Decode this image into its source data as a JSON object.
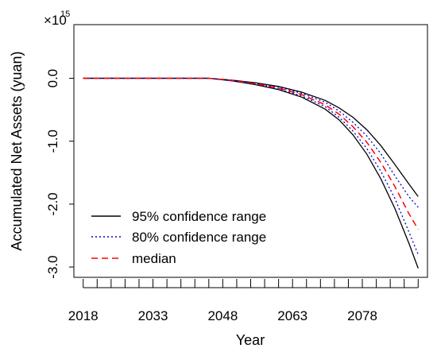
{
  "chart_data": {
    "type": "line",
    "title": "",
    "xlabel": "Year",
    "ylabel": "Accumulated Net Assets (yuan)",
    "y_multiplier_label": "×10",
    "y_multiplier_exponent": "15",
    "x_ticks": [
      2018,
      2021,
      2024,
      2027,
      2030,
      2033,
      2036,
      2039,
      2042,
      2045,
      2048,
      2051,
      2054,
      2057,
      2060,
      2063,
      2066,
      2069,
      2072,
      2075,
      2078,
      2081,
      2084,
      2087,
      2090
    ],
    "x_tick_labels": [
      {
        "value": 2018,
        "label": "2018"
      },
      {
        "value": 2033,
        "label": "2033"
      },
      {
        "value": 2048,
        "label": "2048"
      },
      {
        "value": 2063,
        "label": "2063"
      },
      {
        "value": 2078,
        "label": "2078"
      }
    ],
    "y_ticks": [
      {
        "value": 0.0,
        "label": "0.0"
      },
      {
        "value": -1.0,
        "label": "-1.0"
      },
      {
        "value": -2.0,
        "label": "-2.0"
      },
      {
        "value": -3.0,
        "label": "-3.0"
      }
    ],
    "xlim": [
      2016,
      2092
    ],
    "ylim": [
      -3.05,
      0.55
    ],
    "x": [
      2018,
      2045,
      2050,
      2055,
      2060,
      2065,
      2070,
      2073,
      2076,
      2079,
      2082,
      2085,
      2088,
      2090
    ],
    "series": [
      {
        "name": "95% confidence range",
        "role": "upper",
        "color": "#000000",
        "values": [
          0,
          0,
          -0.03,
          -0.07,
          -0.13,
          -0.22,
          -0.35,
          -0.47,
          -0.62,
          -0.82,
          -1.07,
          -1.37,
          -1.68,
          -1.88
        ]
      },
      {
        "name": "",
        "role": "lower",
        "color": "#000000",
        "values": [
          0,
          0,
          -0.04,
          -0.1,
          -0.18,
          -0.3,
          -0.49,
          -0.66,
          -0.9,
          -1.21,
          -1.6,
          -2.07,
          -2.62,
          -3.02
        ]
      },
      {
        "name": "80% confidence range",
        "role": "upper",
        "color": "#0000cc",
        "values": [
          0,
          0,
          -0.03,
          -0.08,
          -0.14,
          -0.24,
          -0.38,
          -0.52,
          -0.7,
          -0.92,
          -1.2,
          -1.55,
          -1.88,
          -2.05
        ]
      },
      {
        "name": "",
        "role": "lower",
        "color": "#0000cc",
        "values": [
          0,
          0,
          -0.04,
          -0.09,
          -0.17,
          -0.28,
          -0.45,
          -0.62,
          -0.84,
          -1.12,
          -1.48,
          -1.91,
          -2.44,
          -2.8
        ]
      },
      {
        "name": "median",
        "role": "median",
        "color": "#ff0000",
        "values": [
          0,
          0,
          -0.035,
          -0.085,
          -0.155,
          -0.26,
          -0.42,
          -0.57,
          -0.77,
          -1.02,
          -1.34,
          -1.72,
          -2.15,
          -2.4
        ]
      }
    ],
    "legend": {
      "placement": "bottom-left",
      "entries": [
        {
          "label": "95% confidence range",
          "color": "#000000",
          "dash": "solid"
        },
        {
          "label": "80% confidence range",
          "color": "#0000cc",
          "dash": "dotted"
        },
        {
          "label": "median",
          "color": "#ff0000",
          "dash": "dashed"
        }
      ]
    },
    "grid": false
  }
}
